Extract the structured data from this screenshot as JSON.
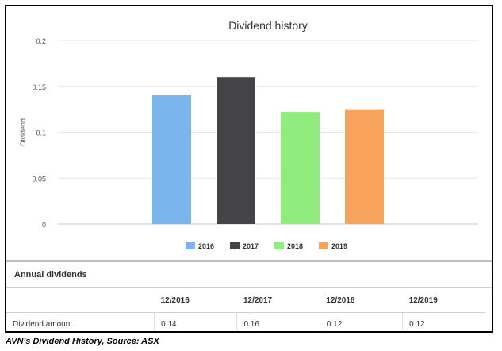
{
  "chart_data": {
    "type": "bar",
    "title": "Dividend history",
    "ylabel": "Dividend",
    "xlabel": "",
    "ylim": [
      0,
      0.2
    ],
    "yticks": [
      "0",
      "0.05",
      "0.1",
      "0.15",
      "0.2"
    ],
    "yticks_values": [
      0,
      0.05,
      0.1,
      0.15,
      0.2
    ],
    "grid": true,
    "legend_position": "bottom",
    "series": [
      {
        "name": "2016",
        "value": 0.141,
        "color": "#7cb5ec"
      },
      {
        "name": "2017",
        "value": 0.16,
        "color": "#434348"
      },
      {
        "name": "2018",
        "value": 0.122,
        "color": "#90ed7d"
      },
      {
        "name": "2019",
        "value": 0.125,
        "color": "#f7a35c"
      }
    ]
  },
  "table": {
    "title": "Annual dividends",
    "columns": [
      "12/2016",
      "12/2017",
      "12/2018",
      "12/2019"
    ],
    "row_label": "Dividend amount",
    "row_values": [
      "0.14",
      "0.16",
      "0.12",
      "0.12"
    ]
  },
  "caption": "AVN’s Dividend History, Source: ASX"
}
